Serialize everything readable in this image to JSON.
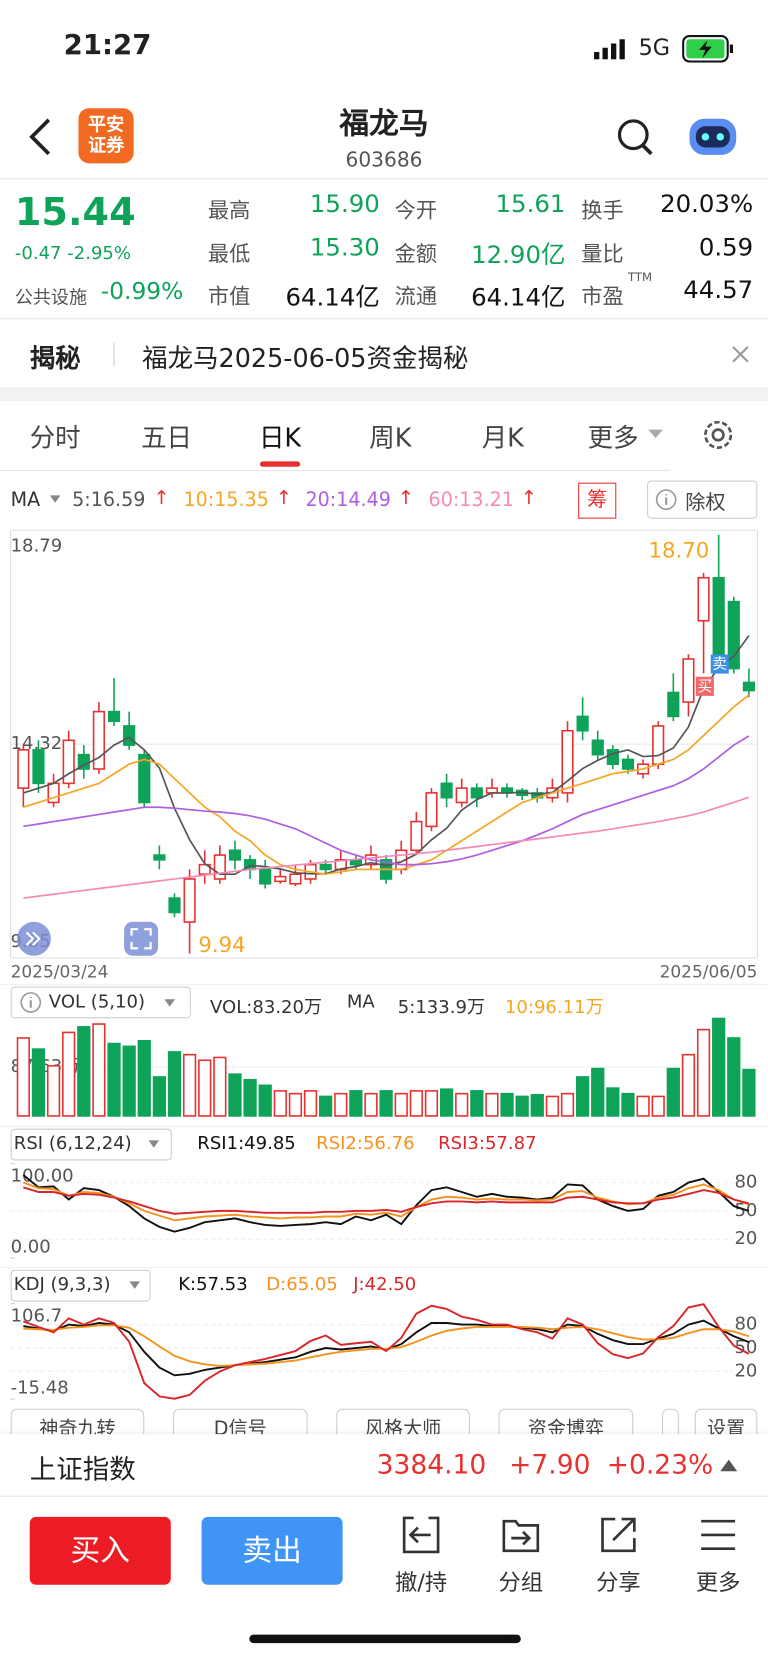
{
  "status_bar": {
    "time": "21:27",
    "network": "5G"
  },
  "header": {
    "logo_top": "平安",
    "logo_bottom": "证券",
    "name": "福龙马",
    "code": "603686"
  },
  "quote": {
    "price": "15.44",
    "change": "-0.47 -2.95%",
    "sector": "公共设施",
    "sector_change": "-0.99%",
    "fields": [
      {
        "label": "最高",
        "value": "15.90"
      },
      {
        "label": "今开",
        "value": "15.61"
      },
      {
        "label": "换手",
        "value": "20.03%"
      },
      {
        "label": "最低",
        "value": "15.30"
      },
      {
        "label": "金额",
        "value": "12.90亿"
      },
      {
        "label": "量比",
        "value": "0.59"
      },
      {
        "label": "市值",
        "value": "64.14亿"
      },
      {
        "label": "流通",
        "value": "64.14亿"
      },
      {
        "label": "市盈",
        "sup": "TTM",
        "value": "44.57"
      }
    ]
  },
  "notice": {
    "tag": "揭秘",
    "text": "福龙马2025-06-05资金揭秘"
  },
  "tabs": [
    "分时",
    "五日",
    "日K",
    "周K",
    "月K",
    "更多"
  ],
  "chart_tools": {
    "legend_label": "MA",
    "chips": "筹",
    "adjust": "除权"
  },
  "chart_data": [
    {
      "type": "candlestick",
      "categories": [
        "2025/03/24",
        null,
        null,
        null,
        null,
        null,
        null,
        null,
        null,
        null,
        null,
        null,
        null,
        null,
        null,
        null,
        null,
        null,
        null,
        null,
        null,
        null,
        null,
        null,
        null,
        null,
        null,
        null,
        null,
        null,
        null,
        null,
        null,
        null,
        null,
        null,
        null,
        null,
        null,
        null,
        null,
        null,
        null,
        null,
        null,
        null,
        null,
        null,
        "2025/06/05"
      ],
      "open": [
        13.4,
        14.2,
        13.1,
        13.5,
        14.1,
        13.8,
        15.0,
        14.7,
        14.1,
        12.0,
        11.1,
        10.6,
        11.6,
        11.5,
        12.1,
        11.9,
        11.7,
        11.45,
        11.4,
        11.5,
        11.8,
        11.7,
        11.9,
        11.8,
        11.9,
        11.7,
        12.1,
        12.6,
        13.5,
        13.1,
        13.4,
        13.3,
        13.4,
        13.35,
        13.3,
        13.2,
        13.3,
        14.9,
        14.4,
        14.2,
        14.0,
        13.7,
        13.9,
        15.4,
        15.2,
        16.9,
        17.8,
        17.3,
        15.61
      ],
      "high": [
        14.3,
        14.4,
        13.7,
        14.6,
        14.3,
        15.2,
        15.7,
        15.0,
        14.2,
        12.2,
        11.2,
        11.7,
        12.1,
        12.2,
        12.3,
        12.0,
        11.9,
        11.7,
        11.8,
        11.9,
        11.9,
        12.1,
        12.0,
        12.2,
        12.0,
        12.3,
        12.9,
        13.4,
        13.7,
        13.6,
        13.5,
        13.6,
        13.5,
        13.4,
        13.4,
        13.6,
        14.8,
        15.3,
        14.6,
        14.3,
        14.1,
        14.0,
        14.8,
        15.8,
        16.2,
        17.9,
        18.7,
        17.4,
        15.9
      ],
      "low": [
        13.0,
        13.3,
        13.0,
        13.4,
        13.6,
        13.7,
        14.7,
        14.2,
        13.0,
        11.7,
        10.7,
        9.94,
        11.4,
        11.4,
        11.7,
        11.5,
        11.3,
        11.4,
        11.35,
        11.4,
        11.6,
        11.6,
        11.7,
        11.7,
        11.4,
        11.6,
        12.0,
        12.5,
        13.0,
        13.0,
        13.0,
        13.2,
        13.2,
        13.15,
        13.1,
        13.1,
        13.1,
        14.4,
        14.0,
        13.8,
        13.7,
        13.6,
        13.8,
        14.8,
        14.9,
        15.8,
        15.9,
        15.8,
        15.3
      ],
      "close": [
        14.2,
        13.5,
        13.5,
        14.4,
        13.8,
        15.0,
        14.8,
        14.3,
        13.1,
        11.9,
        10.8,
        11.5,
        11.8,
        12.0,
        11.9,
        11.7,
        11.4,
        11.55,
        11.6,
        11.8,
        11.7,
        11.9,
        11.8,
        12.0,
        11.5,
        12.1,
        12.7,
        13.3,
        13.2,
        13.4,
        13.2,
        13.4,
        13.3,
        13.25,
        13.2,
        13.4,
        14.6,
        14.6,
        14.1,
        13.9,
        13.8,
        13.9,
        14.7,
        14.9,
        16.1,
        17.8,
        16.1,
        15.9,
        15.44
      ],
      "up_color": "#e8312f",
      "down_color": "#0fa35a",
      "series": [
        {
          "name": "5:16.59",
          "color": "#555555",
          "values": [
            13.3,
            13.4,
            13.5,
            13.7,
            13.88,
            14.04,
            14.3,
            14.46,
            14.2,
            13.82,
            12.98,
            12.32,
            11.82,
            11.6,
            11.6,
            11.78,
            11.76,
            11.71,
            11.63,
            11.61,
            11.61,
            11.71,
            11.76,
            11.84,
            11.78,
            11.86,
            12.02,
            12.32,
            12.56,
            12.94,
            13.16,
            13.3,
            13.3,
            13.31,
            13.27,
            13.31,
            13.55,
            13.81,
            13.98,
            14.12,
            14.2,
            14.06,
            14.08,
            14.24,
            14.68,
            15.48,
            15.92,
            16.16,
            16.59
          ]
        },
        {
          "name": "10:15.35",
          "color": "#f5a623",
          "values": [
            13.0,
            13.1,
            13.2,
            13.3,
            13.4,
            13.5,
            13.7,
            13.9,
            14.0,
            13.9,
            13.6,
            13.3,
            13.0,
            12.8,
            12.5,
            12.3,
            12.0,
            11.8,
            11.7,
            11.65,
            11.6,
            11.65,
            11.7,
            11.7,
            11.7,
            11.7,
            11.8,
            11.9,
            12.1,
            12.3,
            12.5,
            12.7,
            12.9,
            13.1,
            13.2,
            13.3,
            13.4,
            13.5,
            13.6,
            13.7,
            13.75,
            13.8,
            13.9,
            14.0,
            14.2,
            14.5,
            14.8,
            15.1,
            15.35
          ]
        },
        {
          "name": "20:14.49",
          "color": "#b05ee0",
          "values": [
            12.6,
            12.65,
            12.7,
            12.75,
            12.8,
            12.85,
            12.9,
            12.95,
            13.0,
            13.0,
            12.98,
            12.95,
            12.92,
            12.9,
            12.87,
            12.82,
            12.75,
            12.65,
            12.55,
            12.4,
            12.25,
            12.1,
            12.0,
            11.9,
            11.85,
            11.8,
            11.8,
            11.82,
            11.86,
            11.92,
            12.0,
            12.1,
            12.2,
            12.3,
            12.42,
            12.55,
            12.7,
            12.85,
            12.95,
            13.05,
            13.15,
            13.25,
            13.35,
            13.45,
            13.6,
            13.8,
            14.05,
            14.3,
            14.49
          ]
        },
        {
          "name": "60:13.21",
          "color": "#f58ab8",
          "values": [
            11.1,
            11.14,
            11.18,
            11.22,
            11.26,
            11.3,
            11.34,
            11.38,
            11.42,
            11.46,
            11.5,
            11.54,
            11.58,
            11.62,
            11.66,
            11.7,
            11.73,
            11.76,
            11.79,
            11.82,
            11.85,
            11.88,
            11.91,
            11.94,
            11.97,
            12.0,
            12.03,
            12.06,
            12.1,
            12.14,
            12.18,
            12.22,
            12.26,
            12.3,
            12.34,
            12.38,
            12.42,
            12.46,
            12.5,
            12.55,
            12.6,
            12.65,
            12.7,
            12.76,
            12.82,
            12.9,
            13.0,
            13.1,
            13.21
          ]
        }
      ],
      "ylim": [
        9.85,
        18.79
      ],
      "yticks": [
        18.79,
        14.32,
        9.85
      ],
      "grid": true,
      "annotations": [
        "18.70",
        "9.94"
      ],
      "markers": [
        {
          "label": "卖",
          "color": "#3d8fe8"
        },
        {
          "label": "买",
          "color": "#ee6a6a"
        }
      ]
    },
    {
      "type": "bar",
      "title": "VOL (5,10)",
      "series": [
        {
          "name": "VOL:83.20万",
          "color": "#222222",
          "values": [
            140,
            120,
            90,
            150,
            160,
            165,
            130,
            125,
            135,
            70,
            115,
            110,
            100,
            105,
            75,
            65,
            55,
            45,
            40,
            45,
            35,
            40,
            45,
            40,
            45,
            40,
            45,
            45,
            48,
            40,
            45,
            40,
            40,
            35,
            38,
            35,
            40,
            70,
            85,
            50,
            40,
            35,
            35,
            85,
            110,
            155,
            175,
            140,
            83.2
          ]
        }
      ],
      "ma_label": "MA",
      "ma_items": [
        {
          "text": "5:133.9万",
          "color": "#222222"
        },
        {
          "text": "10:96.11万",
          "color": "#f5a623"
        }
      ],
      "ylim": [
        0,
        175.26
      ],
      "yticks": [
        {
          "value": 87.63,
          "label": "87.63万"
        }
      ]
    },
    {
      "type": "line",
      "title": "RSI (6,12,24)",
      "series": [
        {
          "name": "RSI1:49.85",
          "color": "#111111",
          "values": [
            88,
            75,
            76,
            62,
            74,
            72,
            65,
            55,
            42,
            33,
            28,
            32,
            38,
            40,
            42,
            38,
            35,
            34,
            35,
            36,
            38,
            36,
            44,
            40,
            46,
            36,
            56,
            72,
            75,
            70,
            65,
            68,
            65,
            64,
            62,
            64,
            78,
            77,
            62,
            55,
            50,
            52,
            66,
            70,
            80,
            84,
            70,
            55,
            49.85
          ]
        },
        {
          "name": "RSI2:56.76",
          "color": "#f5921e",
          "values": [
            80,
            74,
            73,
            66,
            70,
            69,
            65,
            58,
            50,
            45,
            40,
            42,
            44,
            45,
            46,
            44,
            43,
            42,
            43,
            43,
            44,
            44,
            47,
            46,
            48,
            44,
            54,
            62,
            65,
            64,
            62,
            63,
            62,
            62,
            61,
            62,
            70,
            71,
            64,
            60,
            57,
            58,
            64,
            67,
            74,
            78,
            72,
            62,
            56.76
          ]
        },
        {
          "name": "RSI3:57.87",
          "color": "#d8262a",
          "values": [
            75,
            70,
            70,
            66,
            68,
            67,
            64,
            60,
            55,
            50,
            47,
            48,
            49,
            50,
            50,
            49,
            48,
            48,
            48,
            48,
            49,
            49,
            50,
            50,
            51,
            49,
            54,
            58,
            60,
            60,
            59,
            60,
            59,
            59,
            59,
            59,
            64,
            65,
            62,
            59,
            58,
            58,
            62,
            64,
            68,
            72,
            69,
            62,
            57.87
          ]
        }
      ],
      "ylim": [
        0,
        100
      ],
      "yticks": [
        {
          "value": 100,
          "label": "100.00"
        },
        {
          "value": 0,
          "label": "0.00"
        }
      ],
      "y2lim": [
        0,
        100
      ],
      "y2ticks": [
        80,
        50,
        20
      ]
    },
    {
      "type": "line",
      "title": "KDJ (9,3,3)",
      "series": [
        {
          "name": "K:57.53",
          "color": "#111111",
          "values": [
            78,
            75,
            72,
            80,
            78,
            82,
            80,
            70,
            45,
            25,
            15,
            17,
            22,
            25,
            28,
            30,
            32,
            35,
            38,
            45,
            50,
            48,
            50,
            52,
            48,
            55,
            70,
            82,
            82,
            80,
            80,
            78,
            78,
            76,
            74,
            70,
            80,
            78,
            68,
            60,
            55,
            55,
            62,
            68,
            80,
            85,
            75,
            65,
            57.53
          ]
        },
        {
          "name": "D:65.05",
          "color": "#f5921e",
          "values": [
            75,
            74,
            73,
            76,
            77,
            79,
            79,
            76,
            65,
            52,
            40,
            33,
            29,
            27,
            28,
            29,
            30,
            32,
            34,
            38,
            42,
            45,
            47,
            49,
            49,
            51,
            58,
            66,
            72,
            75,
            77,
            77,
            77,
            77,
            76,
            74,
            76,
            77,
            74,
            69,
            64,
            61,
            61,
            63,
            69,
            74,
            74,
            71,
            65.05
          ]
        },
        {
          "name": "J:42.50",
          "color": "#d8262a",
          "values": [
            84,
            77,
            70,
            88,
            80,
            88,
            82,
            58,
            5,
            -12,
            -15,
            -10,
            8,
            20,
            28,
            32,
            36,
            41,
            46,
            59,
            66,
            54,
            56,
            58,
            46,
            63,
            94,
            104,
            100,
            90,
            86,
            80,
            80,
            74,
            70,
            62,
            88,
            80,
            56,
            42,
            37,
            43,
            64,
            78,
            102,
            106,
            77,
            53,
            42.5
          ]
        }
      ],
      "ylim": [
        -15.48,
        106.7
      ],
      "yticks": [
        106.7,
        -15.48
      ],
      "y2lim": [
        -15.48,
        106.7
      ],
      "y2ticks": [
        80,
        50,
        20
      ]
    }
  ],
  "indicator_buttons": [
    "神奇九转",
    "D信号",
    "风格大师",
    "资金博弈",
    "设置"
  ],
  "index_bar": {
    "name": "上证指数",
    "value": "3384.10",
    "change": "+7.90",
    "change_pct": "+0.23%"
  },
  "actions": {
    "buy": "买入",
    "sell": "卖出",
    "tools": [
      "撤/持",
      "分组",
      "分享",
      "更多"
    ]
  }
}
